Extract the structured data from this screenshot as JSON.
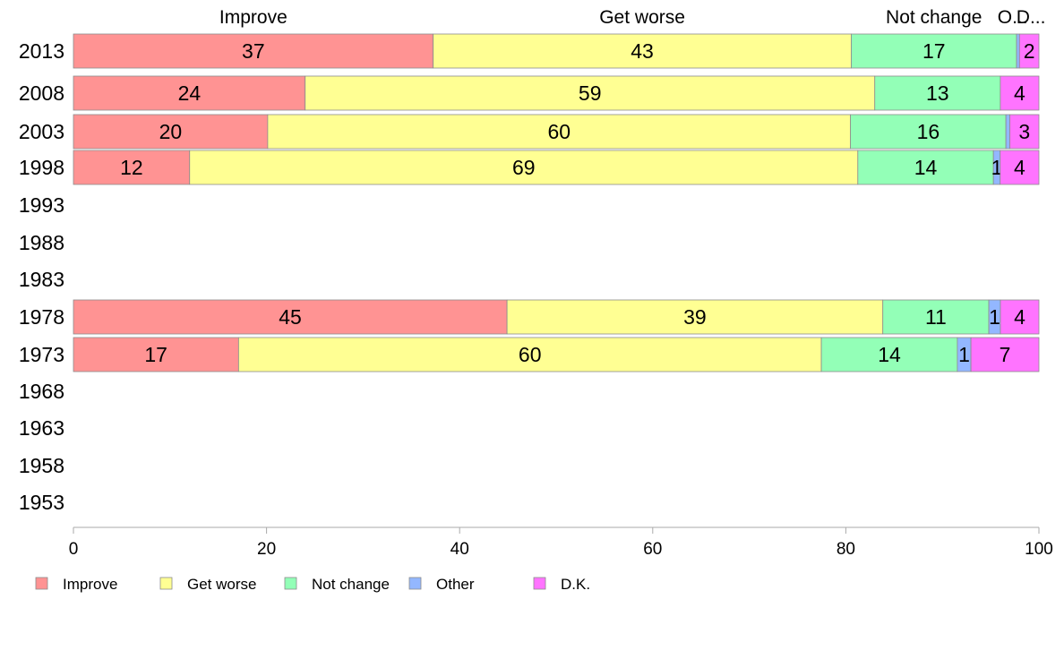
{
  "chart_data": {
    "type": "bar",
    "orientation": "horizontal",
    "stacked": true,
    "categories": [
      "2013",
      "2008",
      "2003",
      "1998",
      "1993",
      "1988",
      "1983",
      "1978",
      "1973",
      "1968",
      "1963",
      "1958",
      "1953"
    ],
    "series": [
      {
        "name": "Improve",
        "color": "#ff9393",
        "values": [
          37,
          24,
          20,
          12,
          null,
          null,
          null,
          45,
          17,
          null,
          null,
          null,
          null
        ]
      },
      {
        "name": "Get worse",
        "color": "#ffff93",
        "values": [
          43,
          59,
          60,
          69,
          null,
          null,
          null,
          39,
          60,
          null,
          null,
          null,
          null
        ]
      },
      {
        "name": "Not change",
        "color": "#93ffb7",
        "values": [
          17,
          13,
          16,
          14,
          null,
          null,
          null,
          11,
          14,
          null,
          null,
          null,
          null
        ]
      },
      {
        "name": "Other",
        "color": "#93b7ff",
        "values": [
          0.3,
          0,
          0.4,
          0.7,
          null,
          null,
          null,
          1.2,
          1.4,
          null,
          null,
          null,
          null
        ]
      },
      {
        "name": "D.K.",
        "color": "#ff74ff",
        "values": [
          2,
          4,
          3,
          4,
          null,
          null,
          null,
          4,
          7,
          null,
          null,
          null,
          null
        ]
      }
    ],
    "data_labels": [
      [
        "37",
        "43",
        "17",
        "",
        "2"
      ],
      [
        "24",
        "59",
        "13",
        "",
        "4"
      ],
      [
        "20",
        "60",
        "16",
        "",
        "3"
      ],
      [
        "12",
        "69",
        "14",
        "1",
        "4"
      ],
      null,
      null,
      null,
      [
        "45",
        "39",
        "11",
        "1",
        "4"
      ],
      [
        "17",
        "60",
        "14",
        "1",
        "7"
      ],
      null,
      null,
      null,
      null
    ],
    "top_labels": [
      "Improve",
      "Get worse",
      "Not change",
      "O...",
      "D..."
    ],
    "xlim": [
      0,
      100
    ],
    "xticks": [
      0,
      20,
      40,
      60,
      80,
      100
    ],
    "grid": false,
    "legend": {
      "position": "bottom-left",
      "entries": [
        "Improve",
        "Get worse",
        "Not change",
        "Other",
        "D.K."
      ]
    }
  }
}
